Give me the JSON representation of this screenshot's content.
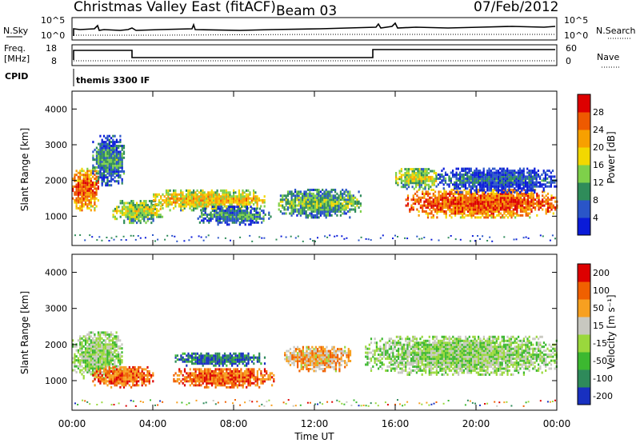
{
  "header": {
    "title": "Christmas Valley East (fitACF)",
    "beam": "Beam 03",
    "date": "07/Feb/2012"
  },
  "top_panels": {
    "nsky_label": "N.Sky",
    "nsky_ticks": [
      "10^5",
      "10^0"
    ],
    "nsearch_label": "N.Search",
    "nsearch_ticks": [
      "10^5",
      "10^0"
    ],
    "freq_label": "Freq.",
    "freq_unit": "[MHz]",
    "freq_ticks": [
      "18",
      "8"
    ],
    "nave_label": "Nave",
    "nave_ticks": [
      "60",
      "0"
    ],
    "cpid_label": "CPID",
    "cpid_value": "themis 3300 IF"
  },
  "chart_data": [
    {
      "type": "heatmap",
      "name": "power",
      "ylabel": "Slant Range [km]",
      "xlabel": "Time UT",
      "ylim": [
        180,
        4500
      ],
      "yticks": [
        "1000",
        "2000",
        "3000",
        "4000"
      ],
      "xticks": [
        "00:00",
        "04:00",
        "08:00",
        "12:00",
        "16:00",
        "20:00",
        "00:00"
      ],
      "colorbar": {
        "label": "Power [dB]",
        "ticks": [
          "4",
          "8",
          "12",
          "16",
          "20",
          "24",
          "28"
        ],
        "colors": [
          "#0a1bd8",
          "#2a55c8",
          "#2f8c5a",
          "#7ed04a",
          "#f2d800",
          "#f7a000",
          "#ee5a00",
          "#dd0000"
        ]
      },
      "regions": [
        {
          "t0": 0.0,
          "t1": 1.3,
          "r0": 1200,
          "r1": 2400,
          "level": 0.85
        },
        {
          "t0": 1.0,
          "t1": 2.6,
          "r0": 1900,
          "r1": 3300,
          "level": 0.35
        },
        {
          "t0": 2.0,
          "t1": 4.5,
          "r0": 850,
          "r1": 1500,
          "level": 0.55
        },
        {
          "t0": 4.0,
          "t1": 9.5,
          "r0": 1200,
          "r1": 1800,
          "level": 0.65
        },
        {
          "t0": 6.2,
          "t1": 9.8,
          "r0": 800,
          "r1": 1300,
          "level": 0.35
        },
        {
          "t0": 10.2,
          "t1": 14.3,
          "r0": 1000,
          "r1": 1800,
          "level": 0.45
        },
        {
          "t0": 16.5,
          "t1": 24.0,
          "r0": 1000,
          "r1": 1800,
          "level": 0.9
        },
        {
          "t0": 16.0,
          "t1": 18.0,
          "r0": 1800,
          "r1": 2400,
          "level": 0.55
        },
        {
          "t0": 18.0,
          "t1": 24.0,
          "r0": 1700,
          "r1": 2400,
          "level": 0.25
        }
      ]
    },
    {
      "type": "heatmap",
      "name": "velocity",
      "ylabel": "Slant Range [km]",
      "xlabel": "Time UT",
      "ylim": [
        180,
        4500
      ],
      "yticks": [
        "1000",
        "2000",
        "3000",
        "4000"
      ],
      "xticks": [
        "00:00",
        "04:00",
        "08:00",
        "12:00",
        "16:00",
        "20:00",
        "00:00"
      ],
      "colorbar": {
        "label": "Velocity [m s⁻¹]",
        "ticks": [
          "200",
          "100",
          "50",
          "15",
          "-15",
          "-50",
          "-100",
          "-200"
        ],
        "colors": [
          "#1830c0",
          "#2e8a5a",
          "#3cb830",
          "#9ad83c",
          "#c8c8c0",
          "#f7a020",
          "#f06000",
          "#dd0000"
        ]
      },
      "regions": [
        {
          "t0": 0.0,
          "t1": 2.5,
          "r0": 1100,
          "r1": 2400,
          "level": 0.45
        },
        {
          "t0": 1.0,
          "t1": 4.0,
          "r0": 850,
          "r1": 1450,
          "level": 0.8
        },
        {
          "t0": 5.0,
          "t1": 9.5,
          "r0": 1450,
          "r1": 1800,
          "level": 0.15
        },
        {
          "t0": 5.0,
          "t1": 10.0,
          "r0": 850,
          "r1": 1400,
          "level": 0.8
        },
        {
          "t0": 10.5,
          "t1": 13.8,
          "r0": 1300,
          "r1": 2000,
          "level": 0.65
        },
        {
          "t0": 14.5,
          "t1": 24.0,
          "r0": 1200,
          "r1": 2300,
          "level": 0.45
        }
      ]
    }
  ]
}
